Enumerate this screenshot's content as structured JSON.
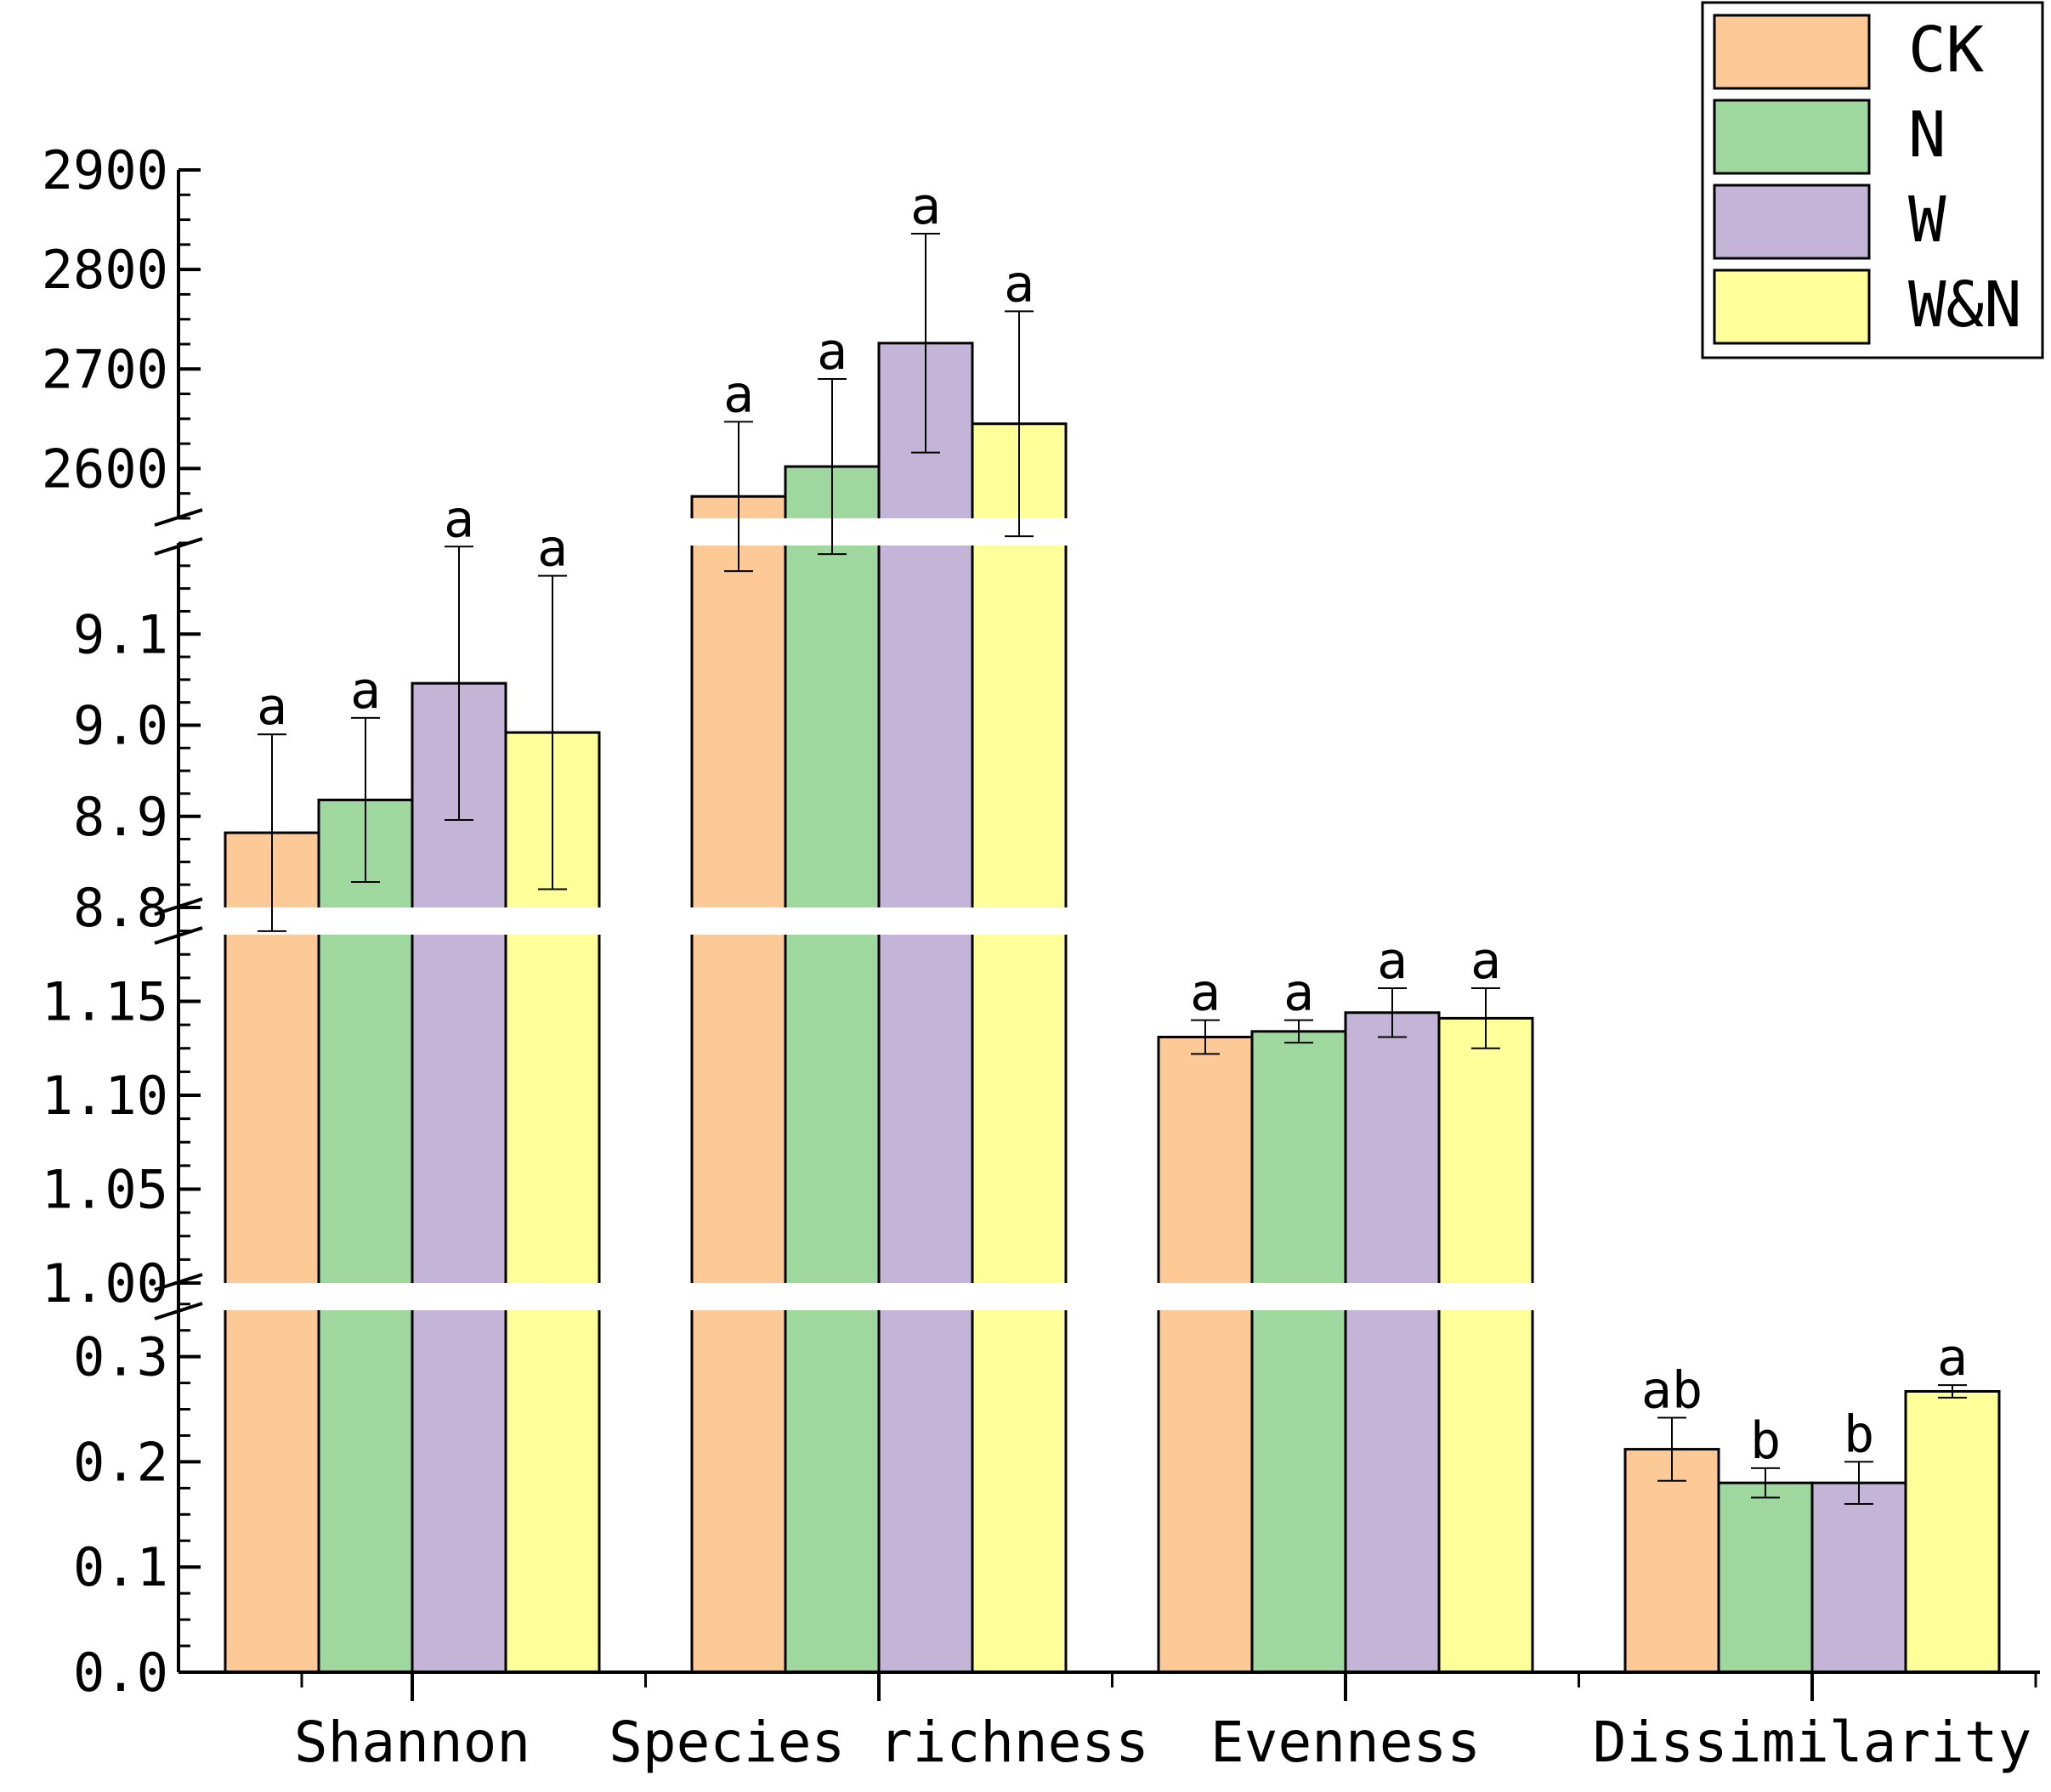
{
  "chart_data": {
    "type": "bar",
    "title": "",
    "xlabel": "",
    "ylabel": "",
    "categories": [
      "Shannon",
      "Species richness",
      "Evenness",
      "Dissimilarity"
    ],
    "colors": [
      "#fdc997",
      "#9fd89f",
      "#c3b4d8",
      "#ffff99"
    ],
    "series": [
      {
        "name": "CK",
        "values": [
          8.882,
          2572,
          1.131,
          0.212
        ],
        "errors": [
          0.108,
          75,
          0.009,
          0.03
        ],
        "letters": [
          "a",
          "a",
          "a",
          "ab"
        ]
      },
      {
        "name": "N",
        "values": [
          8.918,
          2602,
          1.134,
          0.18
        ],
        "errors": [
          0.09,
          88,
          0.006,
          0.014
        ],
        "letters": [
          "a",
          "a",
          "a",
          "b"
        ]
      },
      {
        "name": "W",
        "values": [
          9.046,
          2726,
          1.144,
          0.18
        ],
        "errors": [
          0.15,
          110,
          0.013,
          0.02
        ],
        "letters": [
          "a",
          "a",
          "a",
          "b"
        ]
      },
      {
        "name": "W&N",
        "values": [
          8.992,
          2645,
          1.141,
          0.267
        ],
        "errors": [
          0.172,
          113,
          0.016,
          0.006
        ],
        "letters": [
          "a",
          "a",
          "a",
          "a"
        ]
      }
    ],
    "axis_segments": [
      {
        "name": "richness",
        "ylim": [
          2550,
          2900
        ],
        "ticks": [
          2600,
          2700,
          2800,
          2900
        ],
        "tick_labels": [
          "2600",
          "2700",
          "2800",
          "2900"
        ],
        "minor_step": 25
      },
      {
        "name": "shannon",
        "ylim": [
          8.8,
          9.2
        ],
        "ticks": [
          8.8,
          8.9,
          9.0,
          9.1
        ],
        "tick_labels": [
          "8.8",
          "8.9",
          "9.0",
          "9.1"
        ],
        "minor_step": 0.025
      },
      {
        "name": "evenness",
        "ylim": [
          1.0,
          1.2
        ],
        "ticks": [
          1.0,
          1.05,
          1.1,
          1.15
        ],
        "tick_labels": [
          "1.00",
          "1.05",
          "1.10",
          "1.15"
        ],
        "minor_step": 0.0125
      },
      {
        "name": "low",
        "ylim": [
          0,
          0.37
        ],
        "ticks": [
          0,
          0.1,
          0.2,
          0.3
        ],
        "tick_labels": [
          "0.0",
          "0.1",
          "0.2",
          "0.3"
        ],
        "minor_step": 0.025
      }
    ],
    "category_segments": [
      "shannon",
      "richness",
      "evenness",
      "low"
    ],
    "legend_position": "top-right",
    "grid": false
  }
}
